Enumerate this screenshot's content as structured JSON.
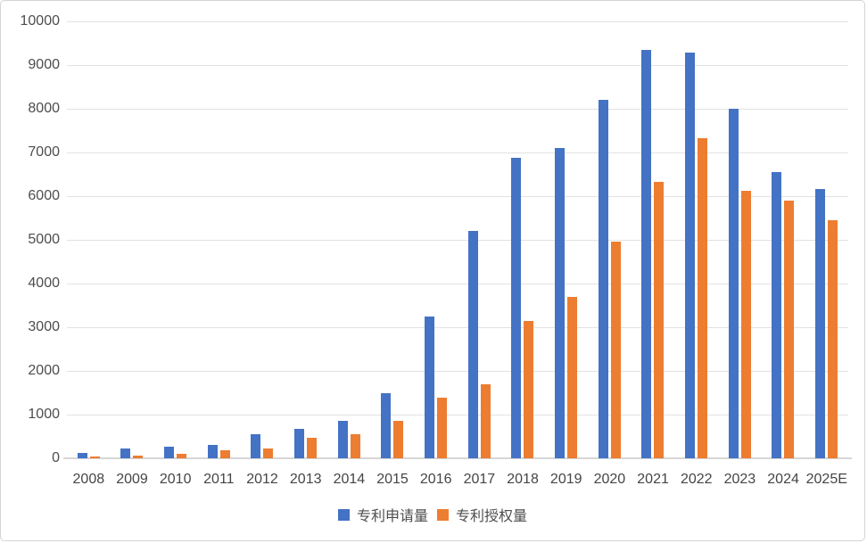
{
  "page": {
    "background": "#ffffff",
    "border_color": "#d4d4d4"
  },
  "colors": {
    "gridline": "#e2e2e2",
    "axis_line": "#d6d6d6",
    "tick_text": "#4d4d4d"
  },
  "chart_data": {
    "type": "bar",
    "title": "",
    "xlabel": "",
    "ylabel": "",
    "categories": [
      "2008",
      "2009",
      "2010",
      "2011",
      "2012",
      "2013",
      "2014",
      "2015",
      "2016",
      "2017",
      "2018",
      "2019",
      "2020",
      "2021",
      "2022",
      "2023",
      "2024",
      "2025E"
    ],
    "series": [
      {
        "name": "专利申请量",
        "color": "#4472C4",
        "values": [
          120,
          220,
          260,
          310,
          560,
          670,
          850,
          1500,
          3240,
          5200,
          6870,
          7100,
          8200,
          9350,
          9280,
          8000,
          6550,
          6170
        ]
      },
      {
        "name": "专利授权量",
        "color": "#ED7D31",
        "values": [
          40,
          65,
          100,
          180,
          230,
          470,
          550,
          850,
          1380,
          1700,
          3150,
          3700,
          4950,
          6320,
          7320,
          6130,
          5900,
          5450
        ]
      }
    ],
    "ylim": [
      0,
      10000
    ],
    "y_ticks": [
      0,
      1000,
      2000,
      3000,
      4000,
      5000,
      6000,
      7000,
      8000,
      9000,
      10000
    ],
    "grid": true,
    "legend_position": "bottom"
  }
}
